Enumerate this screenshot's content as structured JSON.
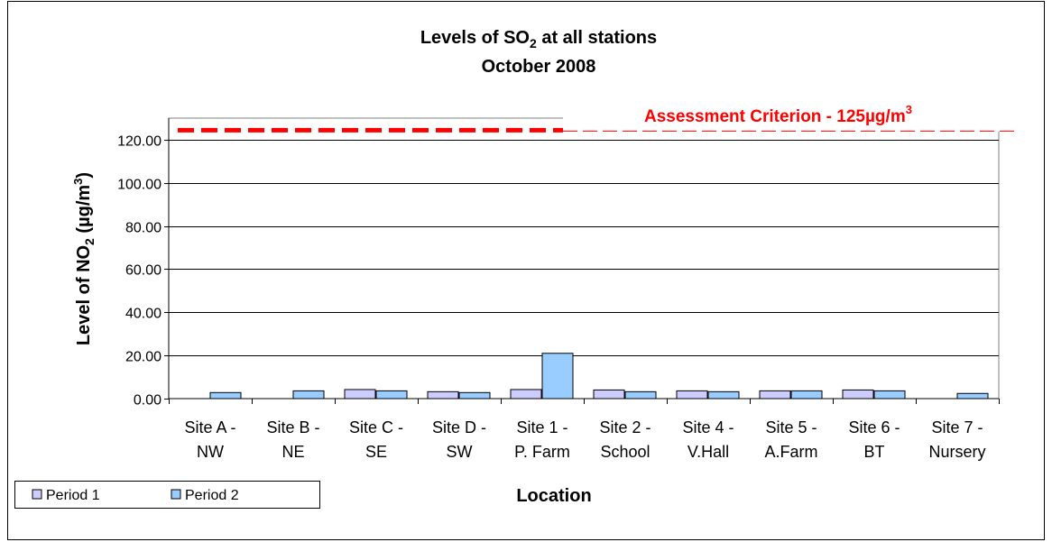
{
  "chart_data": {
    "type": "bar",
    "title": "Levels of SO",
    "title_sub": "2",
    "title_suffix": " at all stations",
    "subtitle": "October 2008",
    "ylabel": "Level of NO",
    "ylabel_sub": "2",
    "ylabel_unit": " (µg/m",
    "ylabel_unit_sup": "3",
    "ylabel_close": ")",
    "xlabel": "Location",
    "ylim": [
      0,
      130
    ],
    "yticks": [
      "0.00",
      "20.00",
      "40.00",
      "60.00",
      "80.00",
      "100.00",
      "120.00"
    ],
    "ytick_values": [
      0,
      20,
      40,
      60,
      80,
      100,
      120
    ],
    "grid": true,
    "legend_position": "bottom-left",
    "categories": [
      [
        "Site A -",
        "NW"
      ],
      [
        "Site B -",
        "NE"
      ],
      [
        "Site C -",
        "SE"
      ],
      [
        "Site D -",
        "SW"
      ],
      [
        "Site 1 -",
        "P. Farm"
      ],
      [
        "Site 2 -",
        "School"
      ],
      [
        "Site 4 -",
        "V.Hall"
      ],
      [
        "Site 5 -",
        "A.Farm"
      ],
      [
        "Site 6 -",
        "BT"
      ],
      [
        "Site 7 -",
        "Nursery"
      ]
    ],
    "series": [
      {
        "name": "Period 1",
        "color": "#ccccff",
        "values": [
          0,
          0,
          4.2,
          3.2,
          4.2,
          4.0,
          3.6,
          3.6,
          4.0,
          0
        ]
      },
      {
        "name": "Period 2",
        "color": "#99ccff",
        "values": [
          2.8,
          3.6,
          3.6,
          2.8,
          21.0,
          3.2,
          3.2,
          3.6,
          3.6,
          2.4
        ]
      }
    ],
    "reference_line": {
      "value": 124,
      "color": "#ff0000",
      "label": "Assessment Criterion - 125µg/m",
      "label_sup": "3"
    }
  }
}
